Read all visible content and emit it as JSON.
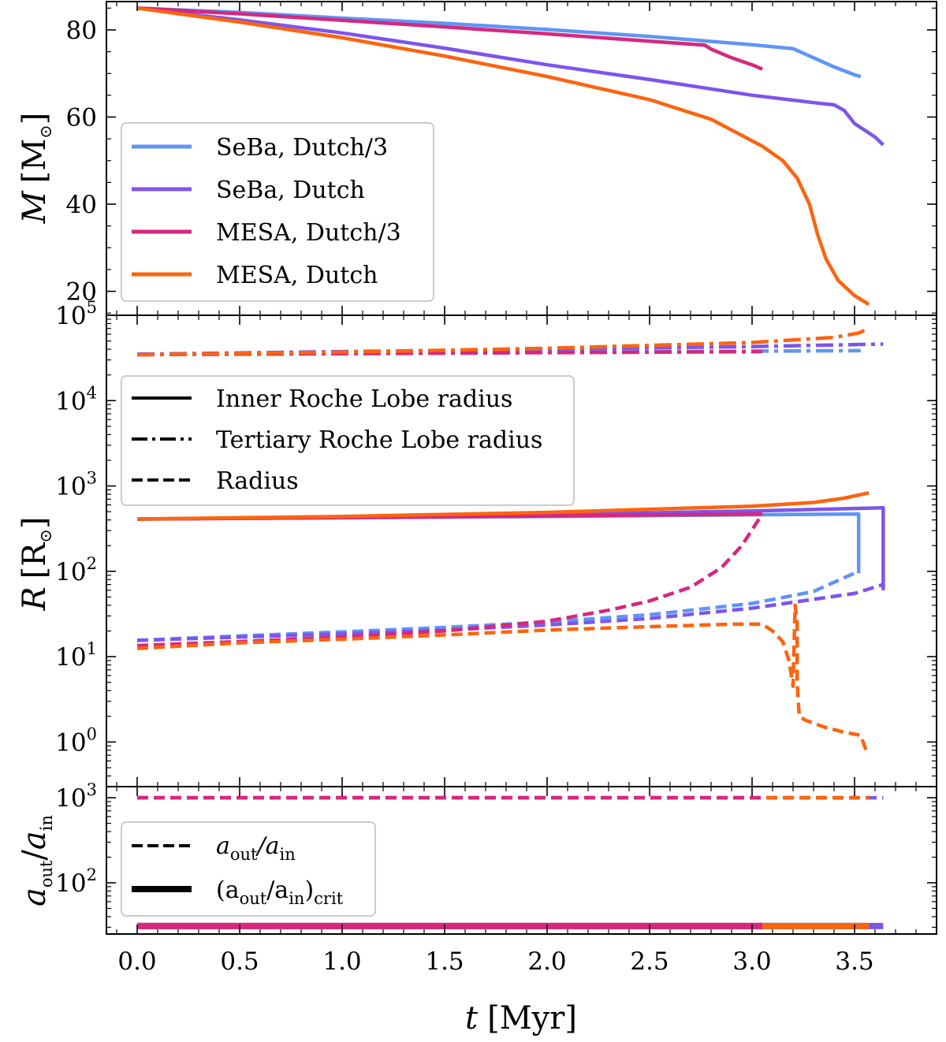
{
  "chart_data": {
    "type": "line",
    "shared_x": {
      "label_symbol": "t",
      "label_unit": "[Myr]",
      "range": [
        -0.15,
        3.9
      ],
      "ticks": [
        0.0,
        0.5,
        1.0,
        1.5,
        2.0,
        2.5,
        3.0,
        3.5
      ],
      "tick_labels": [
        "0.0",
        "0.5",
        "1.0",
        "1.5",
        "2.0",
        "2.5",
        "3.0",
        "3.5"
      ]
    },
    "colors": {
      "seba_dutch3": "#5f95f4",
      "seba_dutch": "#7d55eb",
      "mesa_dutch3": "#d7277f",
      "mesa_dutch": "#fc6410"
    },
    "panels": [
      {
        "id": "mass",
        "ylabel_symbol": "M",
        "ylabel_unit_open": "[M",
        "ylabel_unit_sub": "⊙",
        "ylabel_unit_close": "]",
        "yscale": "linear",
        "ylim": [
          14.5,
          86.5
        ],
        "yticks": [
          20,
          40,
          60,
          80
        ],
        "ytick_labels": [
          "20",
          "40",
          "60",
          "80"
        ],
        "legend": [
          "SeBa, Dutch/3",
          "SeBa, Dutch",
          "MESA, Dutch/3",
          "MESA, Dutch"
        ],
        "legend_position": "center-left",
        "series": [
          {
            "name": "SeBa, Dutch/3",
            "color_key": "seba_dutch3",
            "style": "solid",
            "x": [
              0,
              0.5,
              1.0,
              1.5,
              2.0,
              2.5,
              3.0,
              3.2,
              3.3,
              3.4,
              3.5,
              3.53
            ],
            "y": [
              85,
              84,
              82.7,
              81.5,
              80.1,
              78.5,
              76.6,
              75.7,
              73.6,
              71.5,
              69.7,
              69.3
            ]
          },
          {
            "name": "SeBa, Dutch",
            "color_key": "seba_dutch",
            "style": "solid",
            "x": [
              0,
              0.5,
              1.0,
              1.5,
              2.0,
              2.5,
              3.0,
              3.3,
              3.4,
              3.45,
              3.5,
              3.6,
              3.64
            ],
            "y": [
              85,
              82.3,
              79.3,
              75.8,
              72,
              68.6,
              65,
              63.3,
              62.8,
              61.5,
              58.5,
              55.4,
              53.6
            ]
          },
          {
            "name": "MESA, Dutch/3",
            "color_key": "mesa_dutch3",
            "style": "solid",
            "x": [
              0,
              0.5,
              1.0,
              1.5,
              2.0,
              2.5,
              2.77,
              2.8,
              2.9,
              3.0,
              3.05
            ],
            "y": [
              85,
              83.7,
              82.2,
              80.7,
              79.1,
              77.4,
              76.5,
              75.6,
              73.6,
              72,
              71
            ]
          },
          {
            "name": "MESA, Dutch",
            "color_key": "mesa_dutch",
            "style": "solid",
            "x": [
              0,
              0.5,
              1.0,
              1.5,
              2.0,
              2.5,
              2.8,
              3.05,
              3.15,
              3.22,
              3.28,
              3.32,
              3.36,
              3.42,
              3.5,
              3.57
            ],
            "y": [
              85,
              81.8,
              78.2,
              74,
              69.3,
              64,
              59.5,
              53.3,
              50,
              46,
              40,
              33,
              27.5,
              22.5,
              19,
              17
            ]
          }
        ]
      },
      {
        "id": "radius",
        "ylabel_symbol": "R",
        "ylabel_unit_open": "[R",
        "ylabel_unit_sub": "⊙",
        "ylabel_unit_close": "]",
        "yscale": "log",
        "ylim": [
          0.3,
          100000
        ],
        "yticks": [
          1,
          10,
          100,
          1000,
          10000,
          100000
        ],
        "ytick_exponents": [
          "0",
          "1",
          "2",
          "3",
          "4",
          "5"
        ],
        "ytick_base": "10",
        "legend": [
          "Inner Roche Lobe radius",
          "Tertiary Roche Lobe radius",
          "Radius"
        ],
        "legend_styles": [
          "solid",
          "dashdot",
          "dashed"
        ],
        "legend_position": "upper-left",
        "series": [
          {
            "name": "SeBa, Dutch/3 — Tertiary Roche Lobe radius",
            "color_key": "seba_dutch3",
            "style": "dashdot",
            "x": [
              0,
              1.0,
              2.0,
              3.0,
              3.53
            ],
            "y": [
              35000,
              36000,
              37000,
              38000,
              38500
            ]
          },
          {
            "name": "SeBa, Dutch — Tertiary Roche Lobe radius",
            "color_key": "seba_dutch",
            "style": "dashdot",
            "x": [
              0,
              1.0,
              2.0,
              3.0,
              3.64
            ],
            "y": [
              35000,
              37500,
              40000,
              43000,
              46000
            ]
          },
          {
            "name": "MESA, Dutch/3 — Tertiary Roche Lobe radius",
            "color_key": "mesa_dutch3",
            "style": "dashdot",
            "x": [
              0,
              1.0,
              2.0,
              3.05
            ],
            "y": [
              34500,
              35500,
              36500,
              37500
            ]
          },
          {
            "name": "MESA, Dutch — Tertiary Roche Lobe radius",
            "color_key": "mesa_dutch",
            "style": "dashdot",
            "x": [
              0,
              1.0,
              2.0,
              3.0,
              3.4,
              3.52,
              3.57
            ],
            "y": [
              34500,
              37000,
              41000,
              48000,
              55000,
              62000,
              70000
            ]
          },
          {
            "name": "SeBa, Dutch/3 — Inner Roche Lobe radius",
            "color_key": "seba_dutch3",
            "style": "solid",
            "x": [
              0,
              1.0,
              2.0,
              3.0,
              3.52,
              3.52
            ],
            "y": [
              410,
              425,
              440,
              460,
              470,
              95
            ]
          },
          {
            "name": "SeBa, Dutch — Inner Roche Lobe radius",
            "color_key": "seba_dutch",
            "style": "solid",
            "x": [
              0,
              1.0,
              2.0,
              3.0,
              3.5,
              3.64,
              3.64
            ],
            "y": [
              410,
              430,
              460,
              510,
              545,
              555,
              60
            ]
          },
          {
            "name": "MESA, Dutch/3 — Inner Roche Lobe radius",
            "color_key": "mesa_dutch3",
            "style": "solid",
            "x": [
              0,
              1.0,
              2.0,
              3.05
            ],
            "y": [
              410,
              425,
              445,
              470
            ]
          },
          {
            "name": "MESA, Dutch — Inner Roche Lobe radius",
            "color_key": "mesa_dutch",
            "style": "solid",
            "x": [
              0,
              1.0,
              2.0,
              3.0,
              3.3,
              3.45,
              3.57
            ],
            "y": [
              410,
              440,
              490,
              580,
              640,
              720,
              830
            ]
          },
          {
            "name": "SeBa, Dutch/3 — Radius",
            "color_key": "seba_dutch3",
            "style": "dashed",
            "x": [
              0,
              0.5,
              1.0,
              1.5,
              2.0,
              2.5,
              3.0,
              3.3,
              3.52
            ],
            "y": [
              15.5,
              17.5,
              19.5,
              22,
              25.5,
              31,
              42,
              58,
              100
            ]
          },
          {
            "name": "SeBa, Dutch — Radius",
            "color_key": "seba_dutch",
            "style": "dashed",
            "x": [
              0,
              0.5,
              1.0,
              1.5,
              2.0,
              2.5,
              3.0,
              3.5,
              3.64
            ],
            "y": [
              15.5,
              17,
              18.5,
              20.5,
              23.5,
              28,
              37,
              55,
              70
            ]
          },
          {
            "name": "MESA, Dutch/3 — Radius",
            "color_key": "mesa_dutch3",
            "style": "dashed",
            "x": [
              0,
              0.5,
              1.0,
              1.5,
              2.0,
              2.3,
              2.5,
              2.7,
              2.85,
              2.95,
              3.05
            ],
            "y": [
              13.5,
              15,
              17,
              20,
              26,
              35,
              45,
              65,
              110,
              200,
              470
            ]
          },
          {
            "name": "MESA, Dutch — Radius",
            "color_key": "mesa_dutch",
            "style": "dashed",
            "x": [
              0,
              0.5,
              1.0,
              1.5,
              2.0,
              2.5,
              2.9,
              3.05,
              3.1,
              3.15,
              3.18,
              3.2,
              3.21,
              3.22,
              3.22,
              3.23,
              3.26,
              3.35,
              3.45,
              3.53,
              3.56
            ],
            "y": [
              12.5,
              14.5,
              16,
              18,
              20.5,
              22.5,
              24,
              24,
              20,
              15,
              9,
              4.5,
              40,
              25,
              5,
              2,
              1.8,
              1.5,
              1.3,
              1.2,
              0.75
            ]
          }
        ]
      },
      {
        "id": "separation",
        "ylabel_symbol": "a",
        "ylabel_sub1": "out",
        "ylabel_slash": "/",
        "ylabel_sub2": "in",
        "yscale": "log",
        "ylim": [
          25,
          1350
        ],
        "yticks": [
          100,
          1000
        ],
        "ytick_exponents": [
          "2",
          "3"
        ],
        "ytick_base": "10",
        "legend": [
          {
            "sym": "a",
            "sub": "out",
            "sym2": "/a",
            "sub2": "in",
            "tail": "",
            "tail_sub": ""
          },
          {
            "sym": "(a",
            "sub": "out",
            "sym2": "/a",
            "sub2": "in",
            "tail": ")",
            "tail_sub": "crit"
          }
        ],
        "legend_styles": [
          "dashed",
          "solid-thick"
        ],
        "legend_position": "center-left",
        "series": [
          {
            "name": "a_out/a_in — SeBa, Dutch",
            "color_key": "seba_dutch",
            "style": "dashed",
            "x": [
              0,
              3.64
            ],
            "y": [
              1000,
              1000
            ]
          },
          {
            "name": "a_out/a_in — SeBa, Dutch/3",
            "color_key": "seba_dutch3",
            "style": "dashed",
            "x": [
              0,
              3.53
            ],
            "y": [
              1000,
              1000
            ]
          },
          {
            "name": "a_out/a_in — MESA, Dutch",
            "color_key": "mesa_dutch",
            "style": "dashed",
            "x": [
              0,
              3.57
            ],
            "y": [
              1000,
              1000
            ]
          },
          {
            "name": "a_out/a_in — MESA, Dutch/3",
            "color_key": "mesa_dutch3",
            "style": "dashed",
            "x": [
              0,
              3.05
            ],
            "y": [
              1000,
              1000
            ]
          },
          {
            "name": "(a_out/a_in)_crit — SeBa, Dutch",
            "color_key": "seba_dutch",
            "style": "solid-thick",
            "x": [
              0,
              3.64
            ],
            "y": [
              31,
              31
            ]
          },
          {
            "name": "(a_out/a_in)_crit — SeBa, Dutch/3",
            "color_key": "seba_dutch3",
            "style": "solid-thick",
            "x": [
              0,
              3.53
            ],
            "y": [
              31,
              31
            ]
          },
          {
            "name": "(a_out/a_in)_crit — MESA, Dutch",
            "color_key": "mesa_dutch",
            "style": "solid-thick",
            "x": [
              0,
              3.57
            ],
            "y": [
              31,
              31
            ]
          },
          {
            "name": "(a_out/a_in)_crit — MESA, Dutch/3",
            "color_key": "mesa_dutch3",
            "style": "solid-thick",
            "x": [
              0,
              3.05
            ],
            "y": [
              31,
              31
            ]
          }
        ]
      }
    ]
  }
}
